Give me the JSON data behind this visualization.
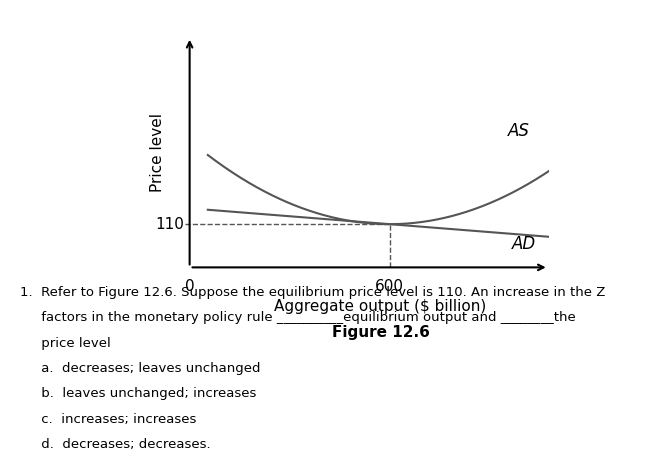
{
  "title": "Figure 12.6",
  "xlabel": "Aggregate output ($ billion)",
  "ylabel": "Price level",
  "equilibrium_output": 600,
  "equilibrium_price": 110,
  "x_label_tick": 600,
  "y_label_tick": 110,
  "origin_label": "0",
  "AS_label": "AS",
  "AD_label": "AD",
  "curve_color": "#555555",
  "dashed_color": "#555555",
  "background_color": "#ffffff",
  "question_text": [
    "1.  Refer to Figure 12.6. Suppose the equilibrium price level is 110. An increase in the Z",
    "     factors in the monetary policy rule __________equilibrium output and ________the",
    "     price level",
    "     a.  decreases; leaves unchanged",
    "     b.  leaves unchanged; increases",
    "     c.  increases; increases",
    "     d.  decreases; decreases."
  ]
}
